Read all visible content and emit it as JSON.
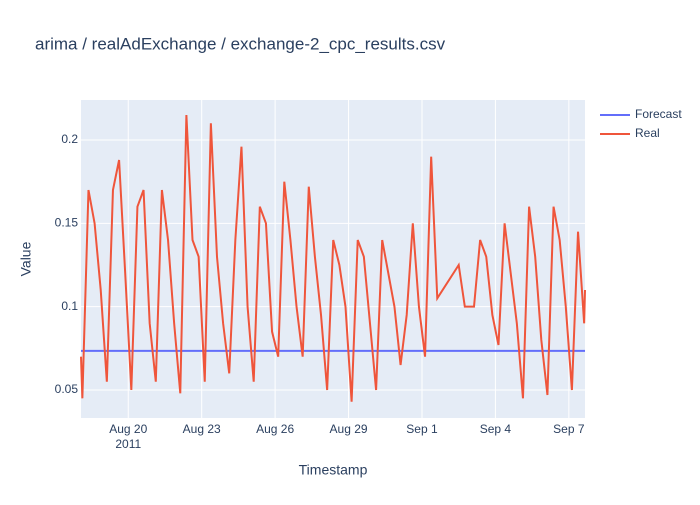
{
  "chart_data": {
    "type": "line",
    "title": "arima / realAdExchange / exchange-2_cpc_results.csv",
    "x_label": "Timestamp",
    "y_label": "Value",
    "xlim": [
      "2011-08-18T01:40",
      "2011-09-07T15:50"
    ],
    "xticks": [
      {
        "value": "2011-08-20T00:00",
        "label": "Aug 20"
      },
      {
        "value": "2011-08-23T00:00",
        "label": "Aug 23"
      },
      {
        "value": "2011-08-26T00:00",
        "label": "Aug 26"
      },
      {
        "value": "2011-08-29T00:00",
        "label": "Aug 29"
      },
      {
        "value": "2011-09-01T00:00",
        "label": "Sep 1"
      },
      {
        "value": "2011-09-04T00:00",
        "label": "Sep 4"
      },
      {
        "value": "2011-09-07T00:00",
        "label": "Sep 7"
      }
    ],
    "x_year_label": "2011",
    "ylim": [
      0.0332,
      0.224
    ],
    "yticks": [
      0.05,
      0.1,
      0.15,
      0.2
    ],
    "grid": true,
    "legend": "right",
    "series": [
      {
        "name": "Forecast",
        "color": "#636efa",
        "x": [
          "2011-08-18T01:40",
          "2011-09-07T15:50"
        ],
        "values": [
          0.0735,
          0.0735
        ]
      },
      {
        "name": "Real",
        "color": "#ef553b",
        "x": [
          "2011-08-18T01:40",
          "2011-08-18T03:00",
          "2011-08-18T09:00",
          "2011-08-18T15:00",
          "2011-08-18T21:00",
          "2011-08-19T03:00",
          "2011-08-19T09:00",
          "2011-08-19T15:00",
          "2011-08-19T21:00",
          "2011-08-20T03:00",
          "2011-08-20T09:00",
          "2011-08-20T15:00",
          "2011-08-20T21:00",
          "2011-08-21T03:00",
          "2011-08-21T09:00",
          "2011-08-21T15:00",
          "2011-08-21T21:00",
          "2011-08-22T03:00",
          "2011-08-22T09:00",
          "2011-08-22T15:00",
          "2011-08-22T21:00",
          "2011-08-23T03:00",
          "2011-08-23T09:00",
          "2011-08-23T15:00",
          "2011-08-23T21:00",
          "2011-08-24T03:00",
          "2011-08-24T09:00",
          "2011-08-24T15:00",
          "2011-08-24T21:00",
          "2011-08-25T03:00",
          "2011-08-25T09:00",
          "2011-08-25T15:00",
          "2011-08-25T21:00",
          "2011-08-26T03:00",
          "2011-08-26T09:00",
          "2011-08-26T15:00",
          "2011-08-26T21:00",
          "2011-08-27T03:00",
          "2011-08-27T09:00",
          "2011-08-27T15:00",
          "2011-08-27T21:00",
          "2011-08-28T03:00",
          "2011-08-28T09:00",
          "2011-08-28T15:00",
          "2011-08-28T21:00",
          "2011-08-29T03:00",
          "2011-08-29T09:00",
          "2011-08-29T15:00",
          "2011-08-29T21:00",
          "2011-08-30T03:00",
          "2011-08-30T09:00",
          "2011-08-30T15:00",
          "2011-08-30T21:00",
          "2011-08-31T03:00",
          "2011-08-31T09:00",
          "2011-08-31T15:00",
          "2011-08-31T21:00",
          "2011-09-01T03:00",
          "2011-09-01T09:00",
          "2011-09-01T15:00",
          "2011-09-02T12:00",
          "2011-09-02T18:00",
          "2011-09-03T03:00",
          "2011-09-03T09:00",
          "2011-09-03T15:00",
          "2011-09-03T21:00",
          "2011-09-04T03:00",
          "2011-09-04T09:00",
          "2011-09-04T15:00",
          "2011-09-04T21:00",
          "2011-09-05T03:00",
          "2011-09-05T09:00",
          "2011-09-05T15:00",
          "2011-09-05T21:00",
          "2011-09-06T03:00",
          "2011-09-06T09:00",
          "2011-09-06T15:00",
          "2011-09-06T21:00",
          "2011-09-07T03:00",
          "2011-09-07T09:00",
          "2011-09-07T15:00",
          "2011-09-07T15:50"
        ],
        "values": [
          0.07,
          0.045,
          0.17,
          0.15,
          0.11,
          0.055,
          0.17,
          0.188,
          0.12,
          0.05,
          0.16,
          0.17,
          0.09,
          0.055,
          0.17,
          0.14,
          0.09,
          0.048,
          0.215,
          0.14,
          0.13,
          0.055,
          0.21,
          0.13,
          0.09,
          0.06,
          0.14,
          0.196,
          0.1,
          0.055,
          0.16,
          0.15,
          0.085,
          0.07,
          0.175,
          0.14,
          0.1,
          0.07,
          0.172,
          0.13,
          0.095,
          0.05,
          0.14,
          0.125,
          0.1,
          0.043,
          0.14,
          0.13,
          0.09,
          0.05,
          0.14,
          0.12,
          0.1,
          0.065,
          0.095,
          0.15,
          0.1,
          0.07,
          0.19,
          0.105,
          0.125,
          0.1,
          0.1,
          0.14,
          0.13,
          0.095,
          0.077,
          0.15,
          0.12,
          0.09,
          0.045,
          0.16,
          0.13,
          0.08,
          0.047,
          0.16,
          0.14,
          0.1,
          0.05,
          0.145,
          0.09,
          0.11
        ]
      }
    ]
  }
}
